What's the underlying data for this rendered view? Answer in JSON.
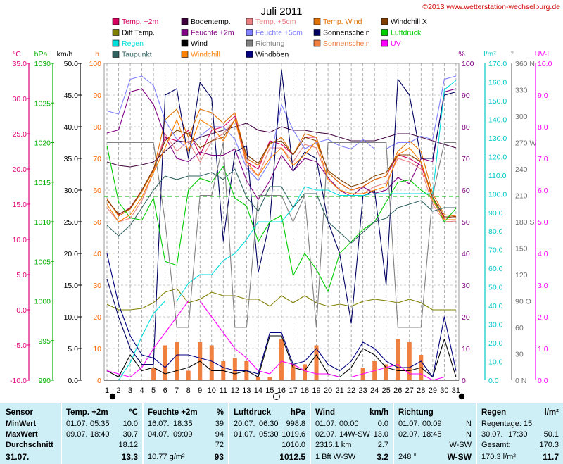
{
  "title": "Juli 2011",
  "copyright": "©2013 www.wetterstation-wechselburg.de",
  "legend": [
    {
      "label": "Temp. +2m",
      "color": "#d40060"
    },
    {
      "label": "Bodentemp.",
      "color": "#400040"
    },
    {
      "label": "Temp. +5cm",
      "color": "#e88080"
    },
    {
      "label": "Temp. Wind",
      "color": "#e07000"
    },
    {
      "label": "Windchill X",
      "color": "#804000"
    },
    {
      "label": "Diff Temp.",
      "color": "#808000"
    },
    {
      "label": "Feuchte +2m",
      "color": "#800080"
    },
    {
      "label": "Feuchte +5cm",
      "color": "#8080ff"
    },
    {
      "label": "Sonnenschein",
      "color": "#000060"
    },
    {
      "label": "Luftdruck",
      "color": "#00cc00"
    },
    {
      "label": "Regen",
      "color": "#00dddd"
    },
    {
      "label": "Wind",
      "color": "#000000"
    },
    {
      "label": "Richtung",
      "color": "#808080"
    },
    {
      "label": "Sonnenschein",
      "color": "#f08040"
    },
    {
      "label": "UV",
      "color": "#ff00ff"
    },
    {
      "label": "Taupunkt",
      "color": "#306060"
    },
    {
      "label": "Windchill",
      "color": "#ff8000"
    },
    {
      "label": "Windböen",
      "color": "#000080"
    }
  ],
  "axes": {
    "temp": {
      "unit": "°C",
      "color": "#e0007a",
      "ticks": [
        "35.0",
        "30.0",
        "25.0",
        "20.0",
        "15.0",
        "10.0",
        "5.0",
        "0.0",
        "-5.0",
        "-10.0"
      ]
    },
    "hpa": {
      "unit": "hPa",
      "color": "#00b000",
      "ticks": [
        "1030",
        "1025",
        "1020",
        "1015",
        "1010",
        "1005",
        "1000",
        "995",
        "990"
      ]
    },
    "kmh": {
      "unit": "km/h",
      "color": "#000000",
      "ticks": [
        "50.0",
        "45.0",
        "40.0",
        "35.0",
        "30.0",
        "25.0",
        "20.0",
        "15.0",
        "10.0",
        "5.0",
        "0.0"
      ]
    },
    "h": {
      "unit": "h",
      "color": "#ff6600",
      "ticks": [
        "100",
        "90",
        "80",
        "70",
        "60",
        "50",
        "40",
        "30",
        "20",
        "10",
        "0"
      ]
    },
    "pct": {
      "unit": "%",
      "color": "#800080",
      "ticks": [
        "100",
        "90",
        "80",
        "70",
        "60",
        "50",
        "40",
        "30",
        "20",
        "10",
        "0"
      ]
    },
    "rain": {
      "unit": "l/m²",
      "color": "#00c8c8",
      "ticks": [
        "170.0",
        "160.0",
        "150.0",
        "140.0",
        "130.0",
        "120.0",
        "110.0",
        "100.0",
        "90.0",
        "80.0",
        "70.0",
        "60.0",
        "50.0",
        "40.0",
        "30.0",
        "20.0",
        "10.0",
        "0.0"
      ]
    },
    "dir": {
      "unit": "°",
      "color": "#707070",
      "ticks": [
        "360 N",
        "330",
        "300",
        "270 W",
        "240",
        "210",
        "180 S",
        "150",
        "120",
        "90 O",
        "60",
        "30",
        "0 N"
      ]
    },
    "uv": {
      "unit": "UV-I",
      "color": "#ff00ff",
      "ticks": [
        "10.0",
        "9.0",
        "8.0",
        "7.0",
        "6.0",
        "5.0",
        "4.0",
        "3.0",
        "2.0",
        "1.0",
        "0.0"
      ]
    }
  },
  "chart_data": {
    "type": "line",
    "title": "Juli 2011",
    "x": [
      1,
      2,
      3,
      4,
      5,
      6,
      7,
      8,
      9,
      10,
      11,
      12,
      13,
      14,
      15,
      16,
      17,
      18,
      19,
      20,
      21,
      22,
      23,
      24,
      25,
      26,
      27,
      28,
      29,
      30,
      31
    ],
    "moon_phases": {
      "new_moon_days": [
        1,
        31
      ],
      "full_moon_days": [
        16
      ]
    },
    "series": [
      {
        "name": "Temp. +2m",
        "axis": "temp",
        "color": "#d40060",
        "values": [
          15.6,
          13.5,
          14.5,
          17,
          20,
          24.5,
          24,
          25.5,
          22,
          25.5,
          26,
          27.5,
          21,
          20,
          24,
          23.5,
          22,
          24.5,
          24.5,
          19.5,
          18,
          17,
          17.5,
          18.5,
          19,
          22,
          21.5,
          20.5,
          16,
          13,
          13.3
        ]
      },
      {
        "name": "Bodentemp.",
        "axis": "temp",
        "color": "#400040",
        "values": [
          21,
          20.5,
          20.3,
          20.6,
          21,
          22.5,
          24,
          23.8,
          24.5,
          25,
          25.5,
          26,
          26.5,
          25.5,
          25.2,
          26,
          25.5,
          25.5,
          25.2,
          25,
          24.5,
          24,
          24,
          24,
          24.5,
          25,
          25,
          24.5,
          24,
          23.5,
          23
        ]
      },
      {
        "name": "Temp. +5cm",
        "axis": "temp",
        "color": "#e88080",
        "values": [
          14.5,
          12.5,
          13,
          15.5,
          19.5,
          25,
          22.5,
          24,
          21,
          24,
          25,
          27,
          20.5,
          19,
          23,
          23,
          21,
          23.5,
          23,
          18.5,
          17,
          16.5,
          16.5,
          17.5,
          18,
          21.5,
          21,
          20,
          15,
          12.5,
          12.6
        ]
      },
      {
        "name": "Temp. Wind",
        "axis": "temp",
        "color": "#e07000",
        "values": [
          15.8,
          13.3,
          14.3,
          16.8,
          19.8,
          27,
          28.5,
          24.5,
          28.5,
          28,
          26.5,
          28,
          21.5,
          20.5,
          23.5,
          24.5,
          22,
          25,
          24.5,
          19.5,
          18,
          17,
          17.5,
          18.5,
          19,
          22.5,
          24,
          22.5,
          16.5,
          13.5,
          13.3
        ]
      },
      {
        "name": "Windchill X",
        "axis": "temp",
        "color": "#804000",
        "values": [
          15.6,
          13.6,
          14.4,
          17,
          20,
          24,
          25.5,
          25,
          23,
          24,
          24.5,
          27,
          22,
          20.8,
          23.7,
          24,
          22,
          24.5,
          24,
          19.8,
          18.5,
          17.5,
          18,
          19,
          19.5,
          22,
          22,
          21,
          16,
          13.2,
          13.2
        ]
      },
      {
        "name": "Diff Temp.",
        "axis": "temp",
        "color": "#808000",
        "values": [
          0.8,
          0,
          0,
          0.2,
          1,
          2.5,
          3,
          1,
          1.5,
          2.5,
          2,
          2,
          1.5,
          1.5,
          0.5,
          2,
          1,
          2,
          1,
          0.5,
          0.8,
          0.5,
          1.2,
          1.5,
          1.3,
          1,
          1.5,
          1,
          0,
          0,
          0
        ]
      },
      {
        "name": "Feuchte +2m",
        "axis": "pct",
        "color": "#800080",
        "values": [
          78,
          79,
          91,
          92,
          87,
          77,
          70,
          69,
          72,
          71,
          71,
          73,
          63,
          57,
          63,
          71,
          66,
          70,
          69,
          64,
          60,
          58,
          61,
          59,
          60,
          64,
          62,
          70,
          69,
          91,
          92
        ]
      },
      {
        "name": "Feuchte +5cm",
        "axis": "pct",
        "color": "#8080ff",
        "values": [
          85,
          84,
          95,
          96,
          93,
          82,
          76,
          73,
          77,
          80,
          80,
          76,
          67,
          63,
          69,
          87,
          79,
          73,
          75,
          76,
          74,
          73,
          76,
          73,
          73,
          75,
          75,
          77,
          76,
          95,
          96
        ]
      },
      {
        "name": "Sonnenschein",
        "axis": "h",
        "color": "#000060",
        "values": [
          32,
          20,
          10,
          5,
          5,
          90,
          92,
          70,
          94,
          89,
          44,
          72,
          74,
          34,
          50,
          98,
          66,
          72,
          70,
          50,
          40,
          18,
          58,
          60,
          30,
          95,
          90,
          70,
          70,
          90,
          91
        ]
      },
      {
        "name": "Luftdruck",
        "axis": "hpa",
        "color": "#00cc00",
        "values": [
          1019.6,
          1012.5,
          1010.5,
          1010.2,
          1013,
          1005,
          1004.5,
          1014,
          1015.5,
          1015,
          1017,
          1013,
          1012,
          1007.5,
          1010,
          1010.8,
          1003.2,
          1006,
          1004,
          1001.2,
          1006,
          1007.5,
          1009,
          1010,
          1012.5,
          1015,
          1015.3,
          1014,
          1013,
          1010,
          1011.7
        ]
      },
      {
        "name": "Regen",
        "axis": "rain",
        "color": "#00dddd",
        "values": [
          0,
          0,
          10,
          25,
          38,
          45,
          45,
          55,
          60,
          60,
          68,
          72,
          80,
          90,
          90,
          90,
          98,
          110,
          108,
          108,
          105,
          105,
          105,
          106,
          106,
          106,
          106,
          106,
          106,
          165,
          170.3
        ]
      },
      {
        "name": "Wind",
        "axis": "kmh",
        "color": "#000000",
        "values": [
          1.5,
          0.5,
          4,
          1.5,
          2,
          1,
          1.5,
          2,
          3,
          1.5,
          1.5,
          1,
          1.5,
          0.5,
          7,
          7,
          2,
          1.5,
          4,
          1,
          0.5,
          2,
          5,
          4,
          2,
          1.5,
          1.5,
          2,
          0.5,
          6.5,
          0.5
        ]
      },
      {
        "name": "Richtung",
        "axis": "dir",
        "color": "#808080",
        "values": [
          270,
          270,
          270,
          270,
          270,
          180,
          60,
          60,
          210,
          210,
          270,
          60,
          60,
          210,
          210,
          210,
          180,
          210,
          60,
          270,
          270,
          270,
          270,
          270,
          270,
          60,
          60,
          60,
          210,
          270,
          270
        ]
      },
      {
        "name": "Sonnenschein (h)",
        "axis": "h",
        "color": "#f08040",
        "type": "bar",
        "values": [
          0,
          0,
          0,
          0,
          4,
          11,
          12,
          3,
          12,
          11,
          6,
          7,
          6,
          1,
          1,
          13,
          5,
          5,
          11,
          0,
          0,
          0,
          4,
          6,
          5,
          13,
          12,
          8,
          0,
          0,
          0
        ]
      },
      {
        "name": "UV",
        "axis": "uv",
        "color": "#ff00ff",
        "values": [
          0.3,
          0.2,
          0.1,
          0.4,
          1,
          1.5,
          2,
          2.5,
          2.5,
          2,
          1.5,
          1,
          0.7,
          0.3,
          0.2,
          0.6,
          0.5,
          0.3,
          0.2,
          0.2,
          0.1,
          0.1,
          0.2,
          0.3,
          0.4,
          0.5,
          0.2,
          0.2,
          0,
          0.1,
          0.1
        ]
      },
      {
        "name": "Taupunkt",
        "axis": "temp",
        "color": "#306060",
        "values": [
          12,
          10.5,
          12,
          14.5,
          17,
          19,
          18.5,
          19,
          19,
          19.5,
          18.5,
          20,
          16,
          14,
          17.5,
          17.5,
          14.5,
          16.5,
          16.5,
          12.5,
          11,
          9.5,
          11,
          12.5,
          13,
          14.5,
          15,
          15.5,
          14,
          14.5,
          14.5
        ]
      },
      {
        "name": "Windchill",
        "axis": "temp",
        "color": "#ff8000",
        "values": [
          15,
          12.5,
          13.5,
          16,
          19.5,
          23,
          27,
          22.5,
          27,
          26,
          24,
          27,
          21,
          19,
          21.5,
          23,
          20.5,
          22,
          24,
          18.5,
          17,
          16.5,
          16.5,
          17,
          17.5,
          22,
          23,
          21,
          15.5,
          12.8,
          12.8
        ]
      },
      {
        "name": "Windböen",
        "axis": "kmh",
        "color": "#000080",
        "values": [
          20,
          12,
          7,
          4,
          3.5,
          2,
          4,
          4,
          3.5,
          3,
          2,
          1.5,
          1.5,
          1,
          7.5,
          7.5,
          2.5,
          3,
          5,
          2.5,
          1.5,
          3,
          6,
          5,
          3,
          2,
          2,
          3,
          0.5,
          10,
          1.5
        ]
      }
    ]
  },
  "stats_table": {
    "sensor": {
      "head": "Sensor",
      "rows": [
        "MinWert",
        "MaxWert",
        "Durchschnitt",
        "31.07."
      ]
    },
    "temp": {
      "head": "Temp. +2m",
      "unit": "°C",
      "rows": [
        {
          "date": "01.07.",
          "time": "05:35",
          "value": "10.0"
        },
        {
          "date": "09.07.",
          "time": "18:40",
          "value": "30.7"
        },
        {
          "date": "",
          "time": "",
          "value": "18.12"
        },
        {
          "date": "",
          "time": "",
          "value": "13.3"
        }
      ]
    },
    "humidity": {
      "head": "Feuchte +2m",
      "unit": "%",
      "rows": [
        {
          "date": "16.07.",
          "time": "18:35",
          "value": "39"
        },
        {
          "date": "04.07.",
          "time": "09:09",
          "value": "94"
        },
        {
          "date": "",
          "time": "",
          "value": "72"
        },
        {
          "date": "10.77 g/m²",
          "time": "",
          "value": "93"
        }
      ]
    },
    "pressure": {
      "head": "Luftdruck",
      "unit": "hPa",
      "rows": [
        {
          "date": "20.07.",
          "time": "06:30",
          "value": "998.8"
        },
        {
          "date": "01.07.",
          "time": "05:30",
          "value": "1019.6"
        },
        {
          "date": "",
          "time": "",
          "value": "1010.0"
        },
        {
          "date": "",
          "time": "",
          "value": "1012.5"
        }
      ]
    },
    "wind": {
      "head": "Wind",
      "unit": "km/h",
      "rows": [
        {
          "date": "01.07.",
          "time": "00:00",
          "value": "0.0"
        },
        {
          "date": "02.07.",
          "time": "14W-SW",
          "value": "13.0"
        },
        {
          "date": "2316.1 km",
          "time": "",
          "value": "2.7"
        },
        {
          "date": "1 Bft W-SW",
          "time": "",
          "value": "3.2"
        }
      ]
    },
    "direction": {
      "head": "Richtung",
      "unit": "",
      "rows": [
        {
          "date": "01.07.",
          "time": "00:09",
          "value": "N"
        },
        {
          "date": "02.07.",
          "time": "18:45",
          "value": "N"
        },
        {
          "date": "",
          "time": "",
          "value": "W-SW"
        },
        {
          "date": "248 °",
          "time": "",
          "value": "W-SW"
        }
      ]
    },
    "rain": {
      "head": "Regen",
      "unit": "l/m²",
      "rows": [
        {
          "date": "Regentage: 15",
          "time": "",
          "value": ""
        },
        {
          "date": "30.07.",
          "time": "17:30",
          "value": "50.1"
        },
        {
          "date": "Gesamt:",
          "time": "",
          "value": "170.3"
        },
        {
          "date": "170.3 l/m²",
          "time": "",
          "value": "11.7"
        }
      ]
    }
  }
}
